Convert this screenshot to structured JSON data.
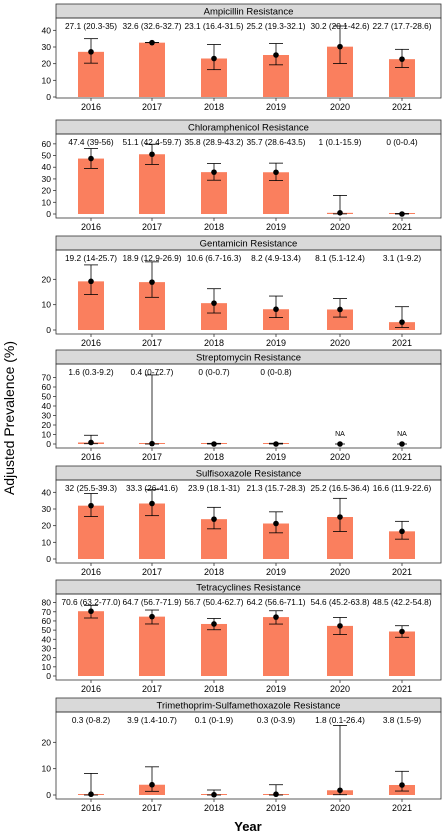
{
  "colors": {
    "bar": "#FA7F5E",
    "strip": "#D9D9D9",
    "strip_border": "#333333",
    "panel_border": "#333333",
    "point": "#000000",
    "text": "#000000",
    "grid": "none"
  },
  "chart_data": {
    "type": "bar",
    "ylabel": "Adjusted Prevalence (%)",
    "xlabel": "Year",
    "grid": false,
    "legend": "none",
    "panels": [
      {
        "title": "Ampicillin Resistance",
        "categories": [
          "2016",
          "2017",
          "2018",
          "2019",
          "2020",
          "2021"
        ],
        "values": [
          27.1,
          32.6,
          23.1,
          25.2,
          30.2,
          22.7
        ],
        "lower": [
          20.3,
          32.6,
          16.4,
          19.3,
          20.1,
          17.7
        ],
        "upper": [
          35,
          32.7,
          31.5,
          32.1,
          42.6,
          28.6
        ],
        "labels": [
          "27.1 (20.3-35)",
          "32.6 (32.6-32.7)",
          "23.1 (16.4-31.5)",
          "25.2 (19.3-32.1)",
          "30.2 (20.1-42.6)",
          "22.7 (17.7-28.6)"
        ],
        "yticks": [
          0,
          10,
          20,
          30,
          40
        ],
        "ylim": [
          0,
          45
        ]
      },
      {
        "title": "Chloramphenicol  Resistance",
        "categories": [
          "2016",
          "2017",
          "2018",
          "2019",
          "2020",
          "2021"
        ],
        "values": [
          47.4,
          51.1,
          35.8,
          35.7,
          1,
          0
        ],
        "lower": [
          39,
          42.4,
          28.9,
          28.6,
          0.1,
          0
        ],
        "upper": [
          56,
          59.7,
          43.2,
          43.5,
          15.9,
          0.4
        ],
        "labels": [
          "47.4 (39-56)",
          "51.1 (42.4-59.7)",
          "35.8 (28.9-43.2)",
          "35.7 (28.6-43.5)",
          "1 (0.1-15.9)",
          "0 (0-0.4)"
        ],
        "yticks": [
          0,
          10,
          20,
          30,
          40,
          50,
          60
        ],
        "ylim": [
          0,
          65
        ]
      },
      {
        "title": "Gentamicin Resistance",
        "categories": [
          "2016",
          "2017",
          "2018",
          "2019",
          "2020",
          "2021"
        ],
        "values": [
          19.2,
          18.9,
          10.6,
          8.2,
          8.1,
          3.1
        ],
        "lower": [
          14,
          12.9,
          6.7,
          4.9,
          5.1,
          1
        ],
        "upper": [
          25.7,
          26.9,
          16.3,
          13.4,
          12.4,
          9.2
        ],
        "labels": [
          "19.2 (14-25.7)",
          "18.9 (12.9-26.9)",
          "10.6 (6.7-16.3)",
          "8.2 (4.9-13.4)",
          "8.1 (5.1-12.4)",
          "3.1 (1-9.2)"
        ],
        "yticks": [
          0,
          10,
          20
        ],
        "ylim": [
          0,
          30
        ]
      },
      {
        "title": "Streptomycin Resistance",
        "categories": [
          "2016",
          "2017",
          "2018",
          "2019",
          "2020",
          "2021"
        ],
        "values": [
          1.6,
          0.4,
          0,
          0,
          null,
          null
        ],
        "lower": [
          0.3,
          0,
          0,
          0,
          null,
          null
        ],
        "upper": [
          9.2,
          72.7,
          0.7,
          0.8,
          null,
          null
        ],
        "labels": [
          "1.6 (0.3-9.2)",
          "0.4 (0-72.7)",
          "0 (0-0.7)",
          "0 (0-0.8)",
          "",
          ""
        ],
        "na_labels": [
          "",
          "",
          "",
          "",
          "NA",
          "NA"
        ],
        "yticks": [
          0,
          10,
          20,
          30,
          40,
          50,
          60,
          70
        ],
        "ylim": [
          0,
          80
        ]
      },
      {
        "title": "Sulfisoxazole Resistance",
        "categories": [
          "2016",
          "2017",
          "2018",
          "2019",
          "2020",
          "2021"
        ],
        "values": [
          32,
          33.3,
          23.9,
          21.3,
          25.2,
          16.6
        ],
        "lower": [
          25.5,
          26,
          18.1,
          15.7,
          16.5,
          11.9
        ],
        "upper": [
          39.3,
          41.6,
          31,
          28.3,
          36.4,
          22.6
        ],
        "labels": [
          "32 (25.5-39.3)",
          "33.3 (26-41.6)",
          "23.9 (18.1-31)",
          "21.3 (15.7-28.3)",
          "25.2 (16.5-36.4)",
          "16.6 (11.9-22.6)"
        ],
        "yticks": [
          0,
          10,
          20,
          30,
          40
        ],
        "ylim": [
          0,
          45
        ]
      },
      {
        "title": "Tetracyclines Resistance",
        "categories": [
          "2016",
          "2017",
          "2018",
          "2019",
          "2020",
          "2021"
        ],
        "values": [
          70.6,
          64.7,
          56.7,
          64.2,
          54.6,
          48.5
        ],
        "lower": [
          63.2,
          56.7,
          50.4,
          56.6,
          45.2,
          42.2
        ],
        "upper": [
          77.0,
          71.9,
          62.7,
          71.1,
          63.8,
          54.8
        ],
        "labels": [
          "70.6 (63.2-77.0)",
          "64.7 (56.7-71.9)",
          "56.7 (50.4-62.7)",
          "64.2 (56.6-71.1)",
          "54.6 (45.2-63.8)",
          "48.5 (42.2-54.8)"
        ],
        "yticks": [
          0,
          10,
          20,
          30,
          40,
          50,
          60,
          70,
          80
        ],
        "ylim": [
          0,
          85
        ]
      },
      {
        "title": "Trimethoprim-Sulfamethoxazole Resistance",
        "categories": [
          "2016",
          "2017",
          "2018",
          "2019",
          "2020",
          "2021"
        ],
        "values": [
          0.3,
          3.9,
          0.1,
          0.3,
          1.8,
          3.8
        ],
        "lower": [
          0,
          1.4,
          0,
          0,
          0.1,
          1.5
        ],
        "upper": [
          8.2,
          10.7,
          1.9,
          3.9,
          26.4,
          9
        ],
        "labels": [
          "0.3 (0-8.2)",
          "3.9 (1.4-10.7)",
          "0.1 (0-1.9)",
          "0.3 (0-3.9)",
          "1.8 (0.1-26.4)",
          "3.8 (1.5-9)"
        ],
        "yticks": [
          0,
          10,
          20
        ],
        "ylim": [
          0,
          30
        ]
      }
    ]
  }
}
